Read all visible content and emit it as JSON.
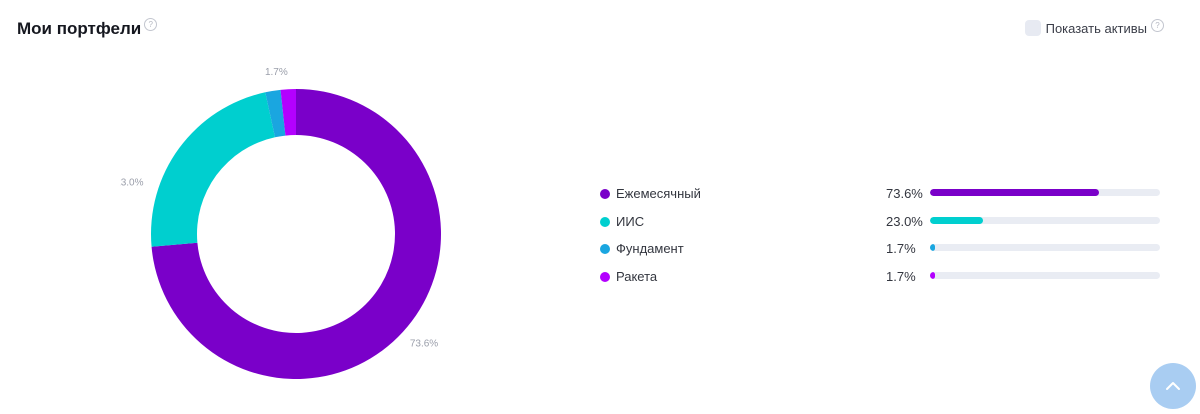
{
  "header": {
    "title": "Мои портфели",
    "help_glyph": "?"
  },
  "toggle": {
    "label": "Показать активы",
    "checked": false,
    "help_glyph": "?"
  },
  "chart_data": {
    "type": "pie",
    "donut": true,
    "categories": [
      "Ежемесячный",
      "ИИС",
      "Фундамент",
      "Ракета"
    ],
    "values": [
      73.6,
      23.0,
      1.7,
      1.7
    ],
    "labels": [
      "73.6%",
      "23.0%",
      "1.7%",
      "1.7%"
    ],
    "colors": [
      "#7a00c9",
      "#00cfcf",
      "#1aa6e0",
      "#b300ff"
    ],
    "legend": "right"
  },
  "scroll_top": {
    "icon": "arrow-up-icon"
  }
}
